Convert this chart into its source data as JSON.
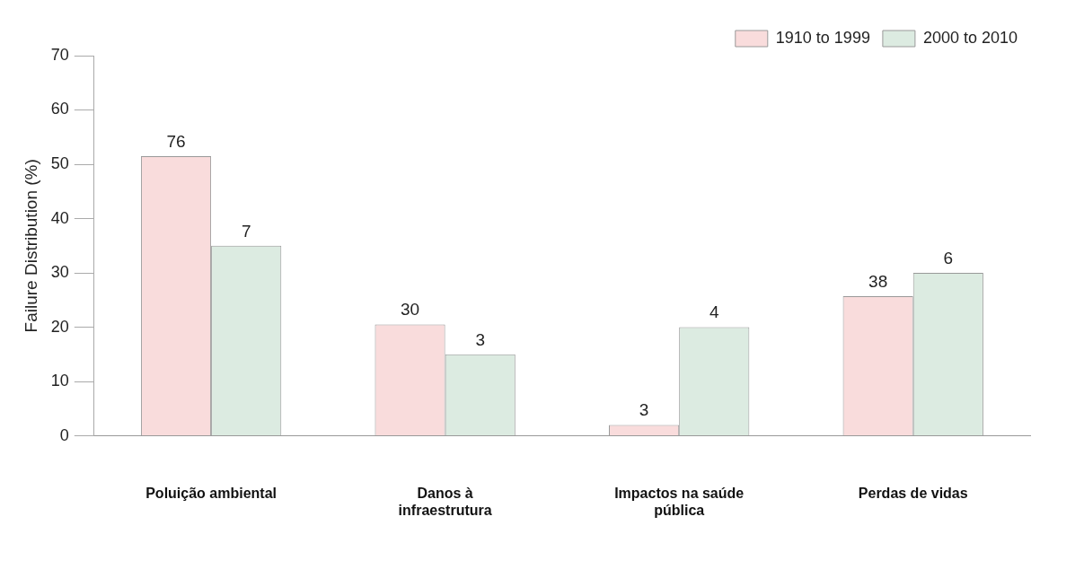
{
  "chart_data": {
    "type": "bar",
    "ylabel": "Failure Distribution (%)",
    "categories": [
      "Poluição ambiental",
      "Danos à infraestrutura",
      "Impactos na saúde pública",
      "Perdas de vidas"
    ],
    "series": [
      {
        "name": "1910 to 1999",
        "color": "#f9dcdc",
        "values": [
          51.5,
          20.5,
          2,
          25.7
        ]
      },
      {
        "name": "2000 to 2010",
        "color": "#dcebe1",
        "values": [
          35,
          15,
          20,
          30
        ]
      }
    ],
    "annotations": [
      {
        "text": "76",
        "x": "Poluição ambiental",
        "y": 51.5
      },
      {
        "text": "7",
        "x": "Poluição ambiental",
        "y": 35
      },
      {
        "text": "30",
        "x": "Danos à infraestrutura",
        "y": 20.5
      },
      {
        "text": "3",
        "x": "Danos à infraestrutura",
        "y": 15
      },
      {
        "text": "3",
        "x": "Impactos na saúde pública",
        "y": 2
      },
      {
        "text": "4",
        "x": "Impactos na saúde pública",
        "y": 20
      },
      {
        "text": "38",
        "x": "Perdas de vidas",
        "y": 25.7
      },
      {
        "text": "6",
        "x": "Perdas de vidas",
        "y": 30
      }
    ],
    "ylim": [
      0,
      70
    ],
    "yticks": [
      0,
      10,
      20,
      30,
      40,
      50,
      60,
      70
    ],
    "grid": false,
    "legend": "top right"
  }
}
